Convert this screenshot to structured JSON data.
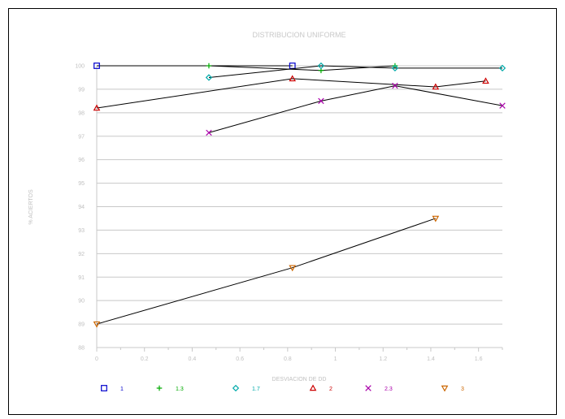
{
  "chart_data": {
    "type": "line",
    "title": "DISTRIBUCION UNIFORME",
    "xlabel": "DESVIACION DE DD",
    "ylabel": "% ACIERTOS",
    "xlim": [
      0,
      1.7
    ],
    "ylim": [
      88,
      100
    ],
    "x_ticks": [
      "0",
      "0.2",
      "0.4",
      "0.6",
      "0.8",
      "1",
      "1.2",
      "1.4",
      "1.6"
    ],
    "y_ticks": [
      "88",
      "89",
      "90",
      "91",
      "92",
      "93",
      "94",
      "95",
      "96",
      "97",
      "98",
      "99",
      "100"
    ],
    "grid": "horizontal",
    "legend_position": "bottom",
    "series": [
      {
        "name": "1",
        "marker": "square",
        "color": "#0000cc",
        "points": [
          [
            0,
            100
          ],
          [
            0.82,
            100
          ]
        ]
      },
      {
        "name": "1.3",
        "marker": "plus",
        "color": "#00aa00",
        "points": [
          [
            0.47,
            100
          ],
          [
            0.94,
            99.8
          ],
          [
            1.25,
            100
          ]
        ]
      },
      {
        "name": "1.7",
        "marker": "diamond",
        "color": "#00aaaa",
        "points": [
          [
            0.47,
            99.5
          ],
          [
            0.94,
            100
          ],
          [
            1.25,
            99.9
          ],
          [
            1.7,
            99.9
          ]
        ]
      },
      {
        "name": "2",
        "marker": "triangle-up",
        "color": "#cc0000",
        "points": [
          [
            0,
            98.2
          ],
          [
            0.82,
            99.45
          ],
          [
            1.42,
            99.1
          ],
          [
            1.63,
            99.35
          ]
        ]
      },
      {
        "name": "2.3",
        "marker": "x",
        "color": "#aa00aa",
        "points": [
          [
            0.47,
            97.15
          ],
          [
            0.94,
            98.5
          ],
          [
            1.25,
            99.15
          ],
          [
            1.7,
            98.3
          ]
        ]
      },
      {
        "name": "3",
        "marker": "triangle-down",
        "color": "#cc6600",
        "points": [
          [
            0,
            89
          ],
          [
            0.82,
            91.4
          ],
          [
            1.42,
            93.5
          ]
        ]
      }
    ]
  }
}
